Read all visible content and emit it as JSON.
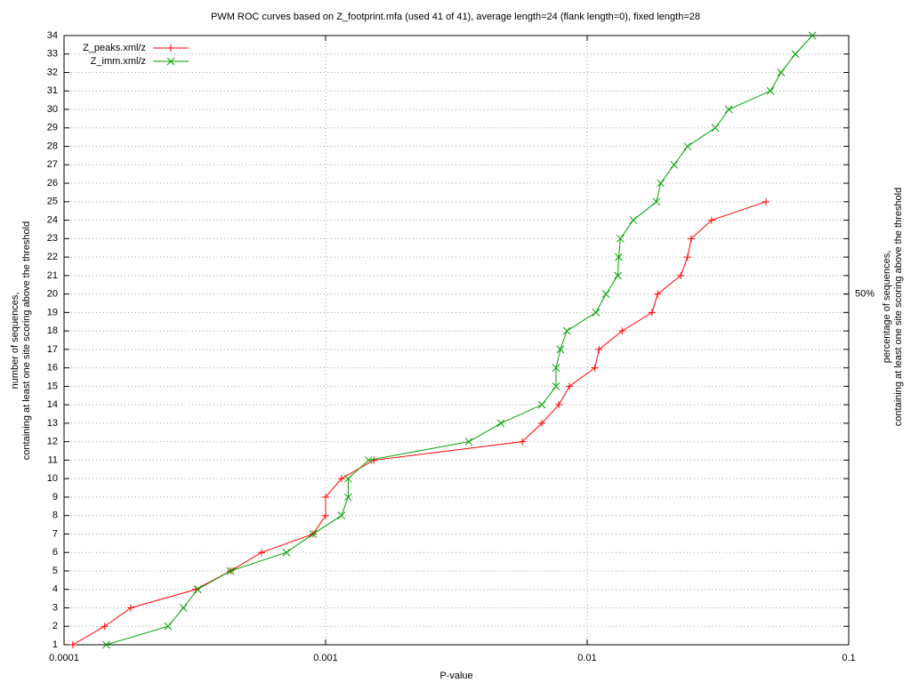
{
  "chart_data": {
    "type": "line",
    "title": "PWM ROC curves based on Z_footprint.mfa (used 41 of 41), average length=24 (flank length=0), fixed length=28",
    "x_label": "P-value",
    "y_label": [
      "number of sequences,",
      "containing at least one site scoring above the threshold"
    ],
    "y2_label": [
      "percentage of sequences,",
      "containing at least one site scoring above the threshold"
    ],
    "xscale": "log",
    "xlim": [
      0.0001,
      0.1
    ],
    "xticks": [
      0.0001,
      0.001,
      0.01,
      0.1
    ],
    "ylim": [
      1,
      34
    ],
    "yticks": [
      1,
      2,
      3,
      4,
      5,
      6,
      7,
      8,
      9,
      10,
      11,
      12,
      13,
      14,
      15,
      16,
      17,
      18,
      19,
      20,
      21,
      22,
      23,
      24,
      25,
      26,
      27,
      28,
      29,
      30,
      31,
      32,
      33,
      34
    ],
    "y2lim": [
      2.5,
      85
    ],
    "y2ticks": [
      {
        "value": 50,
        "label": "50%"
      }
    ],
    "grid": true,
    "legend": "top-left",
    "series": [
      {
        "name": "Z_peaks.xml/z",
        "color": "#ff0000",
        "marker": "+",
        "x": [
          0.000108,
          0.000143,
          0.00018,
          0.000319,
          0.000433,
          0.000569,
          0.000896,
          0.001,
          0.001,
          0.00115,
          0.00153,
          0.00565,
          0.00671,
          0.00779,
          0.00855,
          0.0107,
          0.0111,
          0.0136,
          0.0177,
          0.0186,
          0.0228,
          0.0242,
          0.025,
          0.0299,
          0.0483
        ],
        "values": [
          1,
          2,
          3,
          4,
          5,
          6,
          7,
          8,
          9,
          10,
          11,
          12,
          13,
          14,
          15,
          16,
          17,
          18,
          19,
          20,
          21,
          22,
          23,
          24,
          25
        ]
      },
      {
        "name": "Z_imm.xml/z",
        "color": "#00a000",
        "marker": "x",
        "x": [
          0.000145,
          0.00025,
          0.000286,
          0.000324,
          0.000433,
          0.000708,
          0.000896,
          0.00115,
          0.00122,
          0.00122,
          0.00146,
          0.00353,
          0.00468,
          0.00671,
          0.0076,
          0.0076,
          0.0079,
          0.00836,
          0.0108,
          0.0118,
          0.0131,
          0.0132,
          0.0134,
          0.015,
          0.0184,
          0.0191,
          0.0215,
          0.0242,
          0.0309,
          0.0348,
          0.0502,
          0.0551,
          0.0625,
          0.0726
        ],
        "values": [
          1,
          2,
          3,
          4,
          5,
          6,
          7,
          8,
          9,
          10,
          11,
          12,
          13,
          14,
          15,
          16,
          17,
          18,
          19,
          20,
          21,
          22,
          23,
          24,
          25,
          26,
          27,
          28,
          29,
          30,
          31,
          32,
          33,
          34
        ]
      }
    ]
  }
}
